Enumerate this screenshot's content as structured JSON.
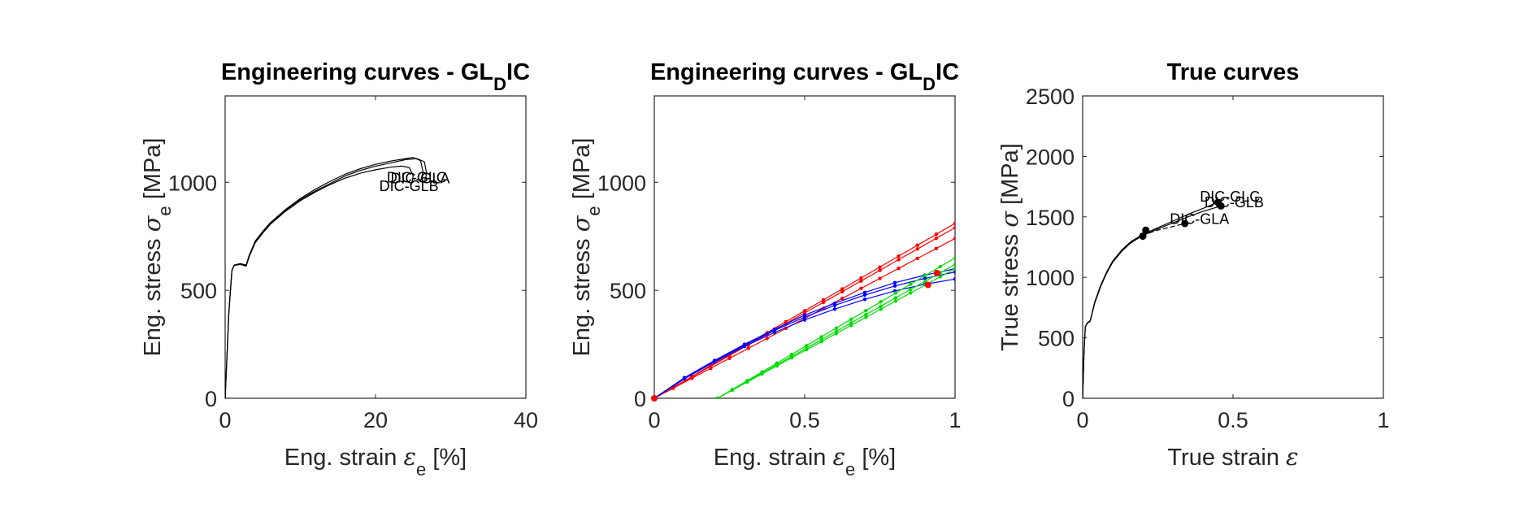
{
  "chart_data": [
    {
      "type": "line",
      "title": "Engineering curves - GL",
      "title_sub": "D",
      "title_suffix": "IC",
      "xlabel": "Eng. strain ",
      "xlabel_sym": "ε",
      "xlabel_sub": "e",
      "xlabel_unit": " [%]",
      "ylabel": "Eng. stress ",
      "ylabel_sym": "σ",
      "ylabel_sub": "e",
      "ylabel_unit": " [MPa]",
      "xlim": [
        0,
        40
      ],
      "ylim": [
        0,
        1400
      ],
      "xticks": [
        0,
        20,
        40
      ],
      "yticks": [
        0,
        500,
        1000
      ],
      "grid": false,
      "series": [
        {
          "name": "DIC-GLA",
          "color": "#000000",
          "x": [
            0,
            0.5,
            0.9,
            1.2,
            2.0,
            2.8,
            3.2,
            4,
            5,
            6,
            8,
            10,
            12,
            14,
            16,
            18,
            20,
            22,
            24,
            25.5,
            26.5,
            26.8,
            26.5
          ],
          "y": [
            0,
            400,
            590,
            615,
            622,
            615,
            660,
            725,
            770,
            810,
            870,
            920,
            960,
            995,
            1030,
            1055,
            1075,
            1090,
            1105,
            1110,
            1095,
            1040,
            1000
          ]
        },
        {
          "name": "DIC-GLB",
          "color": "#000000",
          "x": [
            0,
            0.5,
            0.9,
            1.2,
            2.0,
            2.8,
            3.2,
            4,
            5,
            6,
            8,
            10,
            12,
            14,
            16,
            18,
            20,
            22,
            23.5,
            24.5,
            25.0,
            24.8
          ],
          "y": [
            0,
            400,
            590,
            615,
            620,
            612,
            655,
            720,
            765,
            805,
            865,
            915,
            955,
            990,
            1020,
            1042,
            1058,
            1070,
            1075,
            1068,
            1030,
            990
          ]
        },
        {
          "name": "DIC-GLC",
          "color": "#000000",
          "x": [
            0,
            0.5,
            0.9,
            1.2,
            2.0,
            2.8,
            3.2,
            4,
            5,
            6,
            8,
            10,
            12,
            14,
            16,
            18,
            20,
            22,
            24,
            25.0,
            26.0,
            26.3,
            26.0
          ],
          "y": [
            0,
            400,
            592,
            617,
            624,
            617,
            662,
            728,
            773,
            813,
            873,
            925,
            968,
            1005,
            1038,
            1063,
            1083,
            1098,
            1110,
            1115,
            1100,
            1050,
            1005
          ]
        }
      ],
      "annotations": [
        {
          "text": "DIC-GLC",
          "x": 21.5,
          "y": 1000
        },
        {
          "text": "DIC-GLA",
          "x": 22.0,
          "y": 995
        },
        {
          "text": "DIC-GLB",
          "x": 20.5,
          "y": 960
        }
      ]
    },
    {
      "type": "line",
      "title": "Engineering curves - GL",
      "title_sub": "D",
      "title_suffix": "IC",
      "xlabel": "Eng. strain ",
      "xlabel_sym": "ε",
      "xlabel_sub": "e",
      "xlabel_unit": " [%]",
      "ylabel": "Eng. stress ",
      "ylabel_sym": "σ",
      "ylabel_sub": "e",
      "ylabel_unit": " [MPa]",
      "xlim": [
        0,
        1
      ],
      "ylim": [
        0,
        1400
      ],
      "xticks": [
        0,
        0.5,
        1
      ],
      "xtick_labels": [
        "0",
        "0.5",
        "1"
      ],
      "yticks": [
        0,
        500,
        1000
      ],
      "grid": false,
      "series": [
        {
          "color": "#ff0000",
          "marker": "dot",
          "x": [
            0,
            1
          ],
          "y": [
            0,
            810
          ]
        },
        {
          "color": "#ff0000",
          "marker": "dot",
          "x": [
            0,
            1
          ],
          "y": [
            0,
            790
          ]
        },
        {
          "color": "#ff0000",
          "marker": "dot",
          "x": [
            0,
            1
          ],
          "y": [
            0,
            740
          ]
        },
        {
          "color": "#0000ff",
          "marker": "dot",
          "x": [
            0,
            0.1,
            0.2,
            0.3,
            0.4,
            0.5,
            0.6,
            0.7,
            0.8,
            0.9,
            1.0
          ],
          "y": [
            0,
            95,
            175,
            250,
            320,
            385,
            440,
            490,
            535,
            570,
            600
          ]
        },
        {
          "color": "#0000ff",
          "marker": "dot",
          "x": [
            0,
            0.1,
            0.2,
            0.3,
            0.4,
            0.5,
            0.6,
            0.7,
            0.8,
            0.9,
            1.0
          ],
          "y": [
            0,
            93,
            172,
            246,
            314,
            376,
            430,
            478,
            520,
            555,
            585
          ]
        },
        {
          "color": "#0000ff",
          "marker": "dot",
          "x": [
            0,
            0.1,
            0.2,
            0.3,
            0.4,
            0.5,
            0.6,
            0.7,
            0.8,
            0.9,
            1.0
          ],
          "y": [
            0,
            90,
            168,
            240,
            305,
            363,
            413,
            458,
            497,
            528,
            552
          ]
        },
        {
          "color": "#00dd00",
          "marker": "dot",
          "x": [
            0.21,
            1
          ],
          "y": [
            0,
            650
          ]
        },
        {
          "color": "#00dd00",
          "marker": "dot",
          "x": [
            0.21,
            1
          ],
          "y": [
            0,
            620
          ]
        },
        {
          "color": "#00dd00",
          "marker": "dot",
          "x": [
            0.21,
            1
          ],
          "y": [
            0,
            600
          ]
        }
      ],
      "highlight_points": [
        {
          "x": 0,
          "y": 0,
          "color": "#ff0000"
        },
        {
          "x": 0.94,
          "y": 580,
          "color": "#ff0000"
        },
        {
          "x": 0.91,
          "y": 525,
          "color": "#ff0000"
        }
      ]
    },
    {
      "type": "line",
      "title": "True curves",
      "xlabel": "True strain ",
      "xlabel_sym": "ε",
      "ylabel": "True stress ",
      "ylabel_sym": "σ",
      "ylabel_unit": " [MPa]",
      "xlim": [
        0,
        1
      ],
      "ylim": [
        0,
        2500
      ],
      "xticks": [
        0,
        0.5,
        1
      ],
      "xtick_labels": [
        "0",
        "0.5",
        "1"
      ],
      "yticks": [
        0,
        500,
        1000,
        1500,
        2000,
        2500
      ],
      "grid": false,
      "series": [
        {
          "name": "DIC-GLA",
          "color": "#000000",
          "x": [
            0,
            0.005,
            0.009,
            0.015,
            0.025,
            0.04,
            0.06,
            0.08,
            0.1,
            0.13,
            0.16,
            0.2,
            0.25,
            0.3,
            0.34
          ],
          "y": [
            0,
            400,
            590,
            620,
            640,
            790,
            930,
            1040,
            1130,
            1220,
            1290,
            1350,
            1390,
            1420,
            1445
          ]
        },
        {
          "name": "DIC-GLB",
          "color": "#000000",
          "x": [
            0,
            0.005,
            0.009,
            0.015,
            0.025,
            0.04,
            0.06,
            0.08,
            0.1,
            0.13,
            0.16,
            0.2,
            0.25,
            0.3,
            0.35,
            0.4,
            0.46
          ],
          "y": [
            0,
            400,
            590,
            618,
            638,
            785,
            925,
            1035,
            1125,
            1215,
            1285,
            1345,
            1400,
            1450,
            1500,
            1545,
            1590
          ]
        },
        {
          "name": "DIC-GLC",
          "color": "#000000",
          "x": [
            0,
            0.005,
            0.009,
            0.015,
            0.025,
            0.04,
            0.06,
            0.08,
            0.1,
            0.13,
            0.16,
            0.2,
            0.25,
            0.3,
            0.35,
            0.4,
            0.45
          ],
          "y": [
            0,
            400,
            592,
            622,
            642,
            795,
            935,
            1045,
            1135,
            1225,
            1295,
            1355,
            1410,
            1465,
            1520,
            1570,
            1620
          ]
        }
      ],
      "markers": [
        {
          "x": 0.2,
          "y": 1340
        },
        {
          "x": 0.21,
          "y": 1390
        },
        {
          "x": 0.34,
          "y": 1445
        },
        {
          "x": 0.45,
          "y": 1620
        },
        {
          "x": 0.46,
          "y": 1590
        }
      ],
      "annotations": [
        {
          "text": "DIC-GLC",
          "x": 0.39,
          "y": 1625
        },
        {
          "text": "DIC-GLB",
          "x": 0.405,
          "y": 1580
        },
        {
          "text": "DIC-GLA",
          "x": 0.29,
          "y": 1440
        }
      ]
    }
  ]
}
